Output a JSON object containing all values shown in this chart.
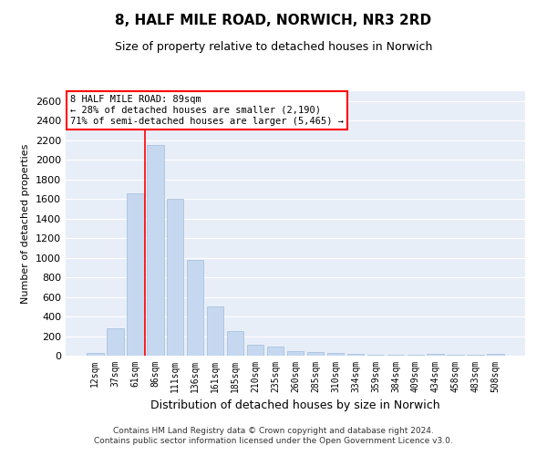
{
  "title1": "8, HALF MILE ROAD, NORWICH, NR3 2RD",
  "title2": "Size of property relative to detached houses in Norwich",
  "xlabel": "Distribution of detached houses by size in Norwich",
  "ylabel": "Number of detached properties",
  "categories": [
    "12sqm",
    "37sqm",
    "61sqm",
    "86sqm",
    "111sqm",
    "136sqm",
    "161sqm",
    "185sqm",
    "210sqm",
    "235sqm",
    "260sqm",
    "285sqm",
    "310sqm",
    "334sqm",
    "359sqm",
    "384sqm",
    "409sqm",
    "434sqm",
    "458sqm",
    "483sqm",
    "508sqm"
  ],
  "values": [
    25,
    275,
    1660,
    2150,
    1600,
    975,
    500,
    248,
    115,
    92,
    50,
    38,
    28,
    18,
    12,
    12,
    6,
    16,
    6,
    6,
    18
  ],
  "bar_color": "#c5d8f0",
  "bar_edge_color": "#a0bcd8",
  "vline_x": 2.5,
  "vline_color": "red",
  "annotation_line1": "8 HALF MILE ROAD: 89sqm",
  "annotation_line2": "← 28% of detached houses are smaller (2,190)",
  "annotation_line3": "71% of semi-detached houses are larger (5,465) →",
  "annotation_box_color": "white",
  "annotation_box_edge_color": "red",
  "ylim": [
    0,
    2700
  ],
  "yticks": [
    0,
    200,
    400,
    600,
    800,
    1000,
    1200,
    1400,
    1600,
    1800,
    2000,
    2200,
    2400,
    2600
  ],
  "background_color": "#e8eef8",
  "grid_color": "#ffffff",
  "footer_line1": "Contains HM Land Registry data © Crown copyright and database right 2024.",
  "footer_line2": "Contains public sector information licensed under the Open Government Licence v3.0.",
  "title1_fontsize": 11,
  "title2_fontsize": 9,
  "xlabel_fontsize": 9,
  "ylabel_fontsize": 8,
  "ytick_fontsize": 8,
  "xtick_fontsize": 7,
  "annotation_fontsize": 7.5,
  "footer_fontsize": 6.5
}
